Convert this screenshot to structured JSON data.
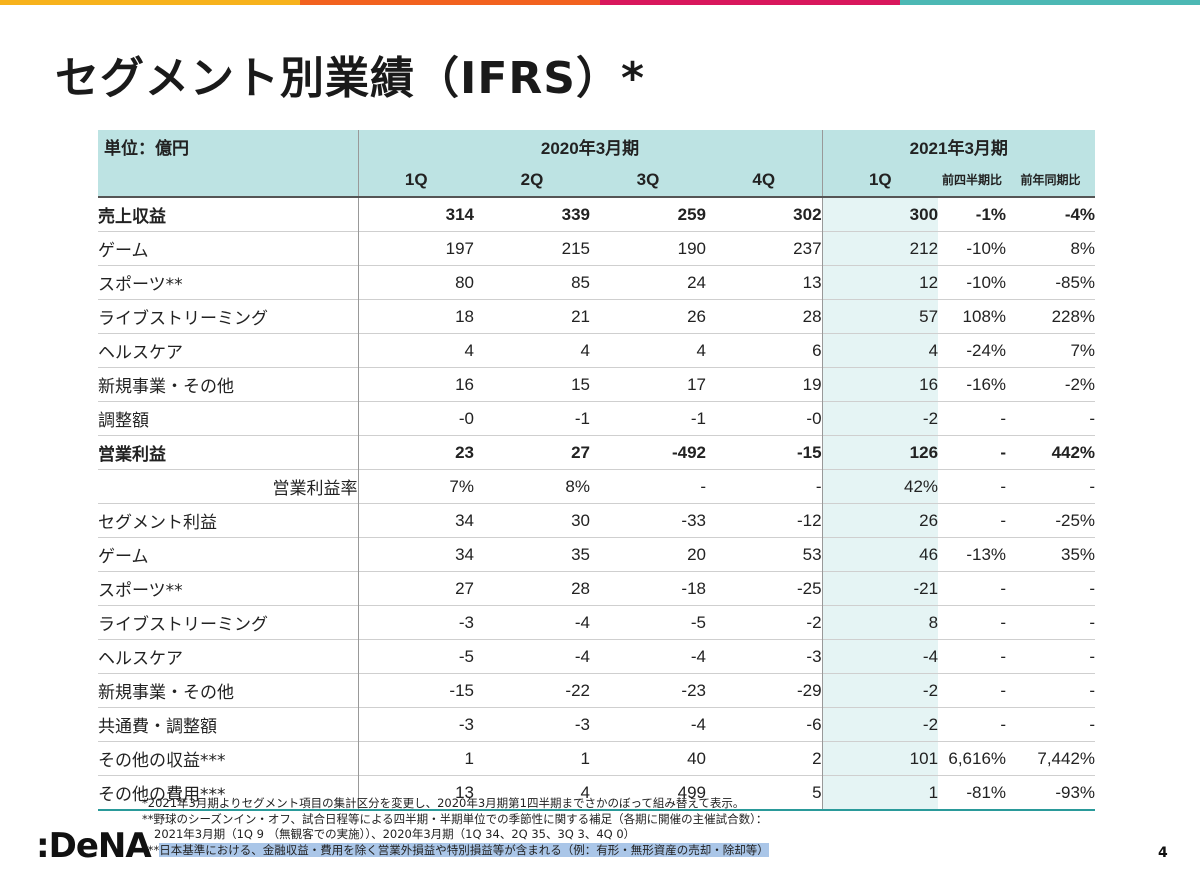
{
  "accent_bar_colors": [
    "#f7b21c",
    "#f2621f",
    "#d8175c",
    "#4cb8b4"
  ],
  "colors": {
    "header_bg": "#bde3e3",
    "header_text": "#2a9a9a",
    "current_col_bg": "#e5f4f4"
  },
  "title": "セグメント別業績（IFRS）*",
  "table": {
    "unit_label": "単位：億円",
    "period_2020": "2020年3月期",
    "period_2021": "2021年3月期",
    "quarters_2020": [
      "1Q",
      "2Q",
      "3Q",
      "4Q"
    ],
    "quarter_2021": "1Q",
    "qoq_label": "前四半期比",
    "yoy_label": "前年同期比",
    "rows": [
      {
        "label": "売上収益",
        "values": [
          "314",
          "339",
          "259",
          "302",
          "300"
        ],
        "qoq": "-1%",
        "yoy": "-4%"
      },
      {
        "label": "ゲーム",
        "values": [
          "197",
          "215",
          "190",
          "237",
          "212"
        ],
        "qoq": "-10%",
        "yoy": "8%"
      },
      {
        "label": "スポーツ**",
        "values": [
          "80",
          "85",
          "24",
          "13",
          "12"
        ],
        "qoq": "-10%",
        "yoy": "-85%"
      },
      {
        "label": "ライブストリーミング",
        "values": [
          "18",
          "21",
          "26",
          "28",
          "57"
        ],
        "qoq": "108%",
        "yoy": "228%"
      },
      {
        "label": "ヘルスケア",
        "values": [
          "4",
          "4",
          "4",
          "6",
          "4"
        ],
        "qoq": "-24%",
        "yoy": "7%"
      },
      {
        "label": "新規事業・その他",
        "values": [
          "16",
          "15",
          "17",
          "19",
          "16"
        ],
        "qoq": "-16%",
        "yoy": "-2%"
      },
      {
        "label": "調整額",
        "values": [
          "-0",
          "-1",
          "-1",
          "-0",
          "-2"
        ],
        "qoq": "-",
        "yoy": "-"
      },
      {
        "label": "営業利益",
        "values": [
          "23",
          "27",
          "-492",
          "-15",
          "126"
        ],
        "qoq": "-",
        "yoy": "442%"
      },
      {
        "label": "営業利益率",
        "values": [
          "7%",
          "8%",
          "-",
          "-",
          "42%"
        ],
        "qoq": "-",
        "yoy": "-"
      },
      {
        "label": "セグメント利益",
        "values": [
          "34",
          "30",
          "-33",
          "-12",
          "26"
        ],
        "qoq": "-",
        "yoy": "-25%"
      },
      {
        "label": "ゲーム",
        "values": [
          "34",
          "35",
          "20",
          "53",
          "46"
        ],
        "qoq": "-13%",
        "yoy": "35%"
      },
      {
        "label": "スポーツ**",
        "values": [
          "27",
          "28",
          "-18",
          "-25",
          "-21"
        ],
        "qoq": "-",
        "yoy": "-"
      },
      {
        "label": "ライブストリーミング",
        "values": [
          "-3",
          "-4",
          "-5",
          "-2",
          "8"
        ],
        "qoq": "-",
        "yoy": "-"
      },
      {
        "label": "ヘルスケア",
        "values": [
          "-5",
          "-4",
          "-4",
          "-3",
          "-4"
        ],
        "qoq": "-",
        "yoy": "-"
      },
      {
        "label": "新規事業・その他",
        "values": [
          "-15",
          "-22",
          "-23",
          "-29",
          "-2"
        ],
        "qoq": "-",
        "yoy": "-"
      },
      {
        "label": "共通費・調整額",
        "values": [
          "-3",
          "-3",
          "-4",
          "-6",
          "-2"
        ],
        "qoq": "-",
        "yoy": "-"
      },
      {
        "label": "その他の収益***",
        "values": [
          "1",
          "1",
          "40",
          "2",
          "101"
        ],
        "qoq": "6,616%",
        "yoy": "7,442%"
      },
      {
        "label": "その他の費用***",
        "values": [
          "13",
          "4",
          "499",
          "5",
          "1"
        ],
        "qoq": "-81%",
        "yoy": "-93%"
      }
    ]
  },
  "notes": {
    "note1": "*2021年3月期よりセグメント項目の集計区分を変更し、2020年3月期第1四半期までさかのぼって組み替えて表示。",
    "note2": "**野球のシーズンイン・オフ、試合日程等による四半期・半期単位での季節性に関する補足（各期に開催の主催試合数）：",
    "note3": "2021年3月期（1Q 9 （無観客での実施））、2020年3月期（1Q 34、2Q 35、3Q 3、4Q 0）",
    "note4_prefix": "***",
    "note4": "日本基準における、金融収益・費用を除く営業外損益や特別損益等が含まれる（例：有形・無形資産の売却・除却等）"
  },
  "logo_text": ":DeNA",
  "page_number": "4"
}
